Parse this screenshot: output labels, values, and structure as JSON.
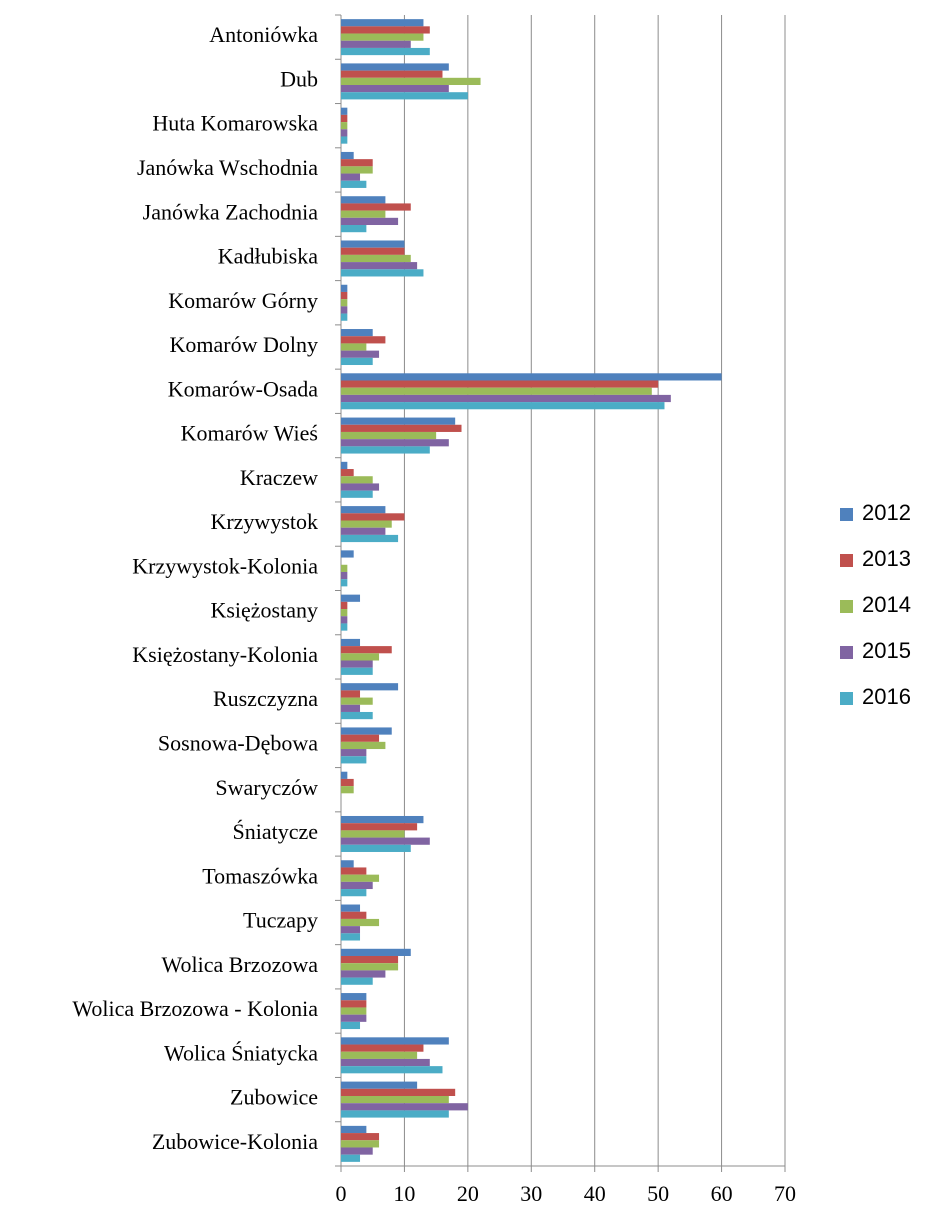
{
  "chart_data": {
    "type": "barh",
    "categories": [
      "Antoniówka",
      "Dub",
      "Huta Komarowska",
      "Janówka Wschodnia",
      "Janówka Zachodnia",
      "Kadłubiska",
      "Komarów Górny",
      "Komarów Dolny",
      "Komarów-Osada",
      "Komarów Wieś",
      "Kraczew",
      "Krzywystok",
      "Krzywystok-Kolonia",
      "Księżostany",
      "Księżostany-Kolonia",
      "Ruszczyzna",
      "Sosnowa-Dębowa",
      "Swaryczów",
      "Śniatycze",
      "Tomaszówka",
      "Tuczapy",
      "Wolica Brzozowa",
      "Wolica Brzozowa - Kolonia",
      "Wolica Śniatycka",
      "Zubowice",
      "Zubowice-Kolonia"
    ],
    "series": [
      {
        "name": "2012",
        "color": "#4f81bd",
        "values": [
          13,
          17,
          1,
          2,
          7,
          10,
          1,
          5,
          60,
          18,
          1,
          7,
          2,
          3,
          3,
          9,
          8,
          1,
          13,
          2,
          3,
          11,
          4,
          17,
          12,
          4
        ]
      },
      {
        "name": "2013",
        "color": "#c0504d",
        "values": [
          14,
          16,
          1,
          5,
          11,
          10,
          1,
          7,
          50,
          19,
          2,
          10,
          0,
          1,
          8,
          3,
          6,
          2,
          12,
          4,
          4,
          9,
          4,
          13,
          18,
          6
        ]
      },
      {
        "name": "2014",
        "color": "#9bbb59",
        "values": [
          13,
          22,
          1,
          5,
          7,
          11,
          1,
          4,
          49,
          15,
          5,
          8,
          1,
          1,
          6,
          5,
          7,
          2,
          10,
          6,
          6,
          9,
          4,
          12,
          17,
          6
        ]
      },
      {
        "name": "2015",
        "color": "#8064a2",
        "values": [
          11,
          17,
          1,
          3,
          9,
          12,
          1,
          6,
          52,
          17,
          6,
          7,
          1,
          1,
          5,
          3,
          4,
          0,
          14,
          5,
          3,
          7,
          4,
          14,
          20,
          5
        ]
      },
      {
        "name": "2016",
        "color": "#4bacc6",
        "values": [
          14,
          20,
          1,
          4,
          4,
          13,
          1,
          5,
          51,
          14,
          5,
          9,
          1,
          1,
          5,
          5,
          4,
          0,
          11,
          4,
          3,
          5,
          3,
          16,
          17,
          3
        ]
      }
    ],
    "xlim": [
      0,
      70
    ],
    "xticks": [
      0,
      10,
      20,
      30,
      40,
      50,
      60,
      70
    ],
    "grid": true,
    "legend": "right"
  }
}
